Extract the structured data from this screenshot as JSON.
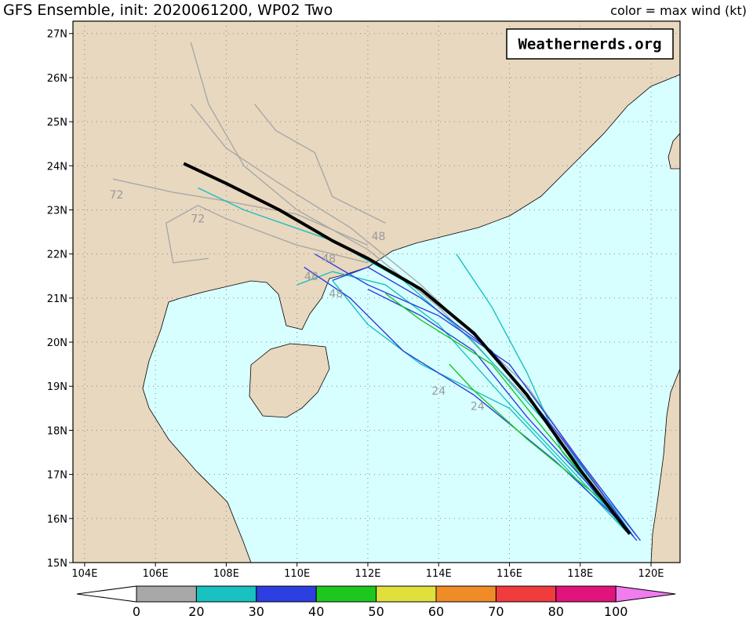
{
  "header": {
    "title": "GFS Ensemble, init: 2020061200, WP02 Two",
    "legend_note": "color = max wind (kt)"
  },
  "watermark": "Weathernerds.org",
  "map": {
    "lonlim": [
      103.67,
      120.82
    ],
    "latlim": [
      15,
      27.28
    ],
    "lonticks": [
      {
        "value": 104,
        "label": "104E"
      },
      {
        "value": 106,
        "label": "106E"
      },
      {
        "value": 108,
        "label": "108E"
      },
      {
        "value": 110,
        "label": "110E"
      },
      {
        "value": 112,
        "label": "112E"
      },
      {
        "value": 114,
        "label": "114E"
      },
      {
        "value": 116,
        "label": "116E"
      },
      {
        "value": 118,
        "label": "118E"
      },
      {
        "value": 120,
        "label": "120E"
      }
    ],
    "latticks": [
      {
        "value": 15,
        "label": "15N"
      },
      {
        "value": 16,
        "label": "16N"
      },
      {
        "value": 17,
        "label": "17N"
      },
      {
        "value": 18,
        "label": "18N"
      },
      {
        "value": 19,
        "label": "19N"
      },
      {
        "value": 20,
        "label": "20N"
      },
      {
        "value": 21,
        "label": "21N"
      },
      {
        "value": 22,
        "label": "22N"
      },
      {
        "value": 23,
        "label": "23N"
      },
      {
        "value": 24,
        "label": "24N"
      },
      {
        "value": 25,
        "label": "25N"
      },
      {
        "value": 26,
        "label": "26N"
      },
      {
        "value": 27,
        "label": "27N"
      }
    ],
    "tracks": [
      {
        "color": "#a8a8a8",
        "points": [
          [
            119.4,
            15.7
          ],
          [
            117,
            18.3
          ],
          [
            114,
            20.8
          ],
          [
            112,
            22.1
          ],
          [
            110,
            23.0
          ],
          [
            108.5,
            24
          ],
          [
            107.5,
            25.4
          ],
          [
            107,
            26.8
          ]
        ]
      },
      {
        "color": "#a8a8a8",
        "points": [
          [
            119.4,
            15.7
          ],
          [
            116.5,
            19
          ],
          [
            113.5,
            21.3
          ],
          [
            111.5,
            22.6
          ],
          [
            109.5,
            23.6
          ],
          [
            108,
            24.4
          ],
          [
            107,
            25.4
          ]
        ]
      },
      {
        "color": "#a8a8a8",
        "points": [
          [
            112,
            22.2
          ],
          [
            110,
            22.9
          ],
          [
            108,
            23.2
          ],
          [
            106.5,
            23.4
          ],
          [
            104.8,
            23.7
          ]
        ]
      },
      {
        "color": "#a8a8a8",
        "points": [
          [
            112,
            21.8
          ],
          [
            110,
            22.2
          ],
          [
            108,
            22.8
          ],
          [
            107.2,
            23.1
          ],
          [
            106.3,
            22.7
          ],
          [
            106.5,
            21.8
          ],
          [
            107.5,
            21.9
          ]
        ]
      },
      {
        "color": "#a8a8a8",
        "points": [
          [
            112.5,
            22.7
          ],
          [
            111,
            23.3
          ],
          [
            110.5,
            24.3
          ],
          [
            109.4,
            24.8
          ],
          [
            108.8,
            25.4
          ]
        ]
      },
      {
        "color": "#19c1c1",
        "points": [
          [
            119.6,
            15.6
          ],
          [
            117,
            18.2
          ],
          [
            115,
            20
          ],
          [
            113,
            21.4
          ],
          [
            111,
            22.3
          ],
          [
            108.5,
            23.0
          ],
          [
            107.2,
            23.5
          ]
        ]
      },
      {
        "color": "#19c1c1",
        "points": [
          [
            119.5,
            15.6
          ],
          [
            116,
            18.6
          ],
          [
            114,
            20.4
          ],
          [
            112.5,
            21.3
          ],
          [
            111,
            21.6
          ],
          [
            110,
            21.3
          ]
        ]
      },
      {
        "color": "#19c1c1",
        "points": [
          [
            119.2,
            15.8
          ],
          [
            117.5,
            17.5
          ],
          [
            116.5,
            19.3
          ],
          [
            115.5,
            20.8
          ],
          [
            114.5,
            22.0
          ]
        ]
      },
      {
        "color": "#19c1c1",
        "points": [
          [
            119.3,
            15.7
          ],
          [
            116,
            18.5
          ],
          [
            113.5,
            19.5
          ],
          [
            112,
            20.4
          ],
          [
            111,
            21.4
          ]
        ]
      },
      {
        "color": "#2d3fe0",
        "points": [
          [
            119.7,
            15.5
          ],
          [
            118,
            17.3
          ],
          [
            116,
            19.5
          ],
          [
            114,
            20.6
          ],
          [
            112,
            21.3
          ],
          [
            110.5,
            22.0
          ]
        ]
      },
      {
        "color": "#2d3fe0",
        "points": [
          [
            119.5,
            15.6
          ],
          [
            117.5,
            17.8
          ],
          [
            115.5,
            19.8
          ],
          [
            113.5,
            21.0
          ],
          [
            112,
            21.7
          ],
          [
            111,
            21.4
          ]
        ]
      },
      {
        "color": "#2d3fe0",
        "points": [
          [
            119.3,
            15.8
          ],
          [
            117.3,
            17.3
          ],
          [
            115,
            18.8
          ],
          [
            113,
            19.8
          ],
          [
            111.5,
            21.0
          ],
          [
            110.2,
            21.7
          ]
        ]
      },
      {
        "color": "#2d3fe0",
        "points": [
          [
            119.6,
            15.5
          ],
          [
            118.2,
            16.8
          ],
          [
            116.5,
            18.3
          ],
          [
            115,
            19.8
          ],
          [
            113.5,
            20.6
          ],
          [
            112,
            21.2
          ]
        ]
      },
      {
        "color": "#1ec71e",
        "points": [
          [
            119.3,
            15.8
          ],
          [
            117,
            18.0
          ],
          [
            115.5,
            19.5
          ],
          [
            113.5,
            20.5
          ],
          [
            112.5,
            21.1
          ]
        ]
      },
      {
        "color": "#1ec71e",
        "points": [
          [
            118.8,
            16.3
          ],
          [
            116.5,
            17.8
          ],
          [
            115,
            18.9
          ],
          [
            114.3,
            19.5
          ]
        ]
      }
    ],
    "mean_track": {
      "color": "#000000",
      "points": [
        [
          119.4,
          15.65
        ],
        [
          118,
          17.1
        ],
        [
          116.5,
          18.8
        ],
        [
          115,
          20.2
        ],
        [
          113.5,
          21.2
        ],
        [
          112,
          21.9
        ],
        [
          111,
          22.3
        ],
        [
          109.5,
          23
        ],
        [
          108,
          23.6
        ],
        [
          106.8,
          24.05
        ]
      ]
    },
    "hour_labels": [
      {
        "text": "72",
        "lon": 104.9,
        "lat": 23.35
      },
      {
        "text": "72",
        "lon": 107.2,
        "lat": 22.8
      },
      {
        "text": "48",
        "lon": 112.3,
        "lat": 22.4
      },
      {
        "text": "48",
        "lon": 110.9,
        "lat": 21.9
      },
      {
        "text": "48",
        "lon": 110.4,
        "lat": 21.5
      },
      {
        "text": "48",
        "lon": 111.1,
        "lat": 21.1
      },
      {
        "text": "24",
        "lon": 114.0,
        "lat": 18.9
      },
      {
        "text": "24",
        "lon": 115.1,
        "lat": 18.55
      }
    ]
  },
  "colorbar": {
    "levels": [
      0,
      20,
      30,
      40,
      50,
      60,
      70,
      80,
      100
    ],
    "colors": [
      "#a8a8a8",
      "#19c1c1",
      "#2d3fe0",
      "#1ec71e",
      "#e0e03c",
      "#f08c28",
      "#f03c3c",
      "#e0147a"
    ],
    "below_color": "#ffffff",
    "above_color": "#f07cf0"
  }
}
